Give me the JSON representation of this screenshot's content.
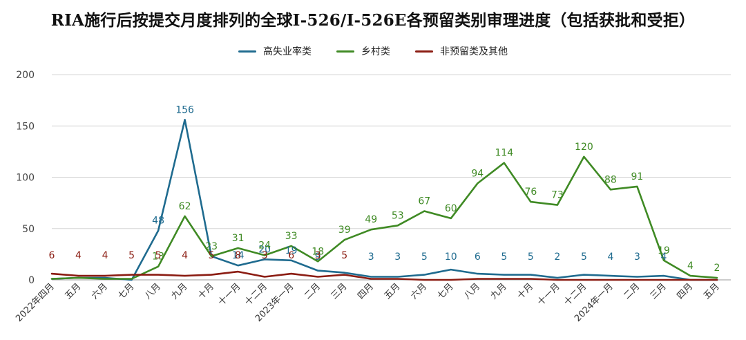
{
  "chart_data": {
    "type": "line",
    "title": "RIA施行后按提交月度排列的全球I-526/I-526E各预留类别审理进度（包括获批和受拒）",
    "categories": [
      "2022年四月",
      "五月",
      "六月",
      "七月",
      "八月",
      "九月",
      "十月",
      "十一月",
      "十二月",
      "2023年一月",
      "二月",
      "三月",
      "四月",
      "五月",
      "六月",
      "七月",
      "八月",
      "九月",
      "十月",
      "十一月",
      "十二月",
      "2024年一月",
      "二月",
      "三月",
      "四月",
      "五月"
    ],
    "ylim": [
      0,
      200
    ],
    "yticks": [
      0,
      50,
      100,
      150,
      200
    ],
    "grid": true,
    "legend_position": "top-center",
    "series": [
      {
        "name": "高失业率类",
        "color": "#1f6b8f",
        "values": [
          1,
          2,
          2,
          0,
          48,
          156,
          23,
          14,
          20,
          19,
          9,
          7,
          3,
          3,
          5,
          10,
          6,
          5,
          5,
          2,
          5,
          4,
          3,
          4,
          0,
          0
        ],
        "labels": [
          "",
          "",
          "",
          "",
          "48",
          "156",
          "",
          "14",
          "20",
          "19",
          "9",
          "",
          "3",
          "3",
          "5",
          "10",
          "6",
          "5",
          "5",
          "2",
          "5",
          "4",
          "3",
          "4",
          "",
          ""
        ]
      },
      {
        "name": "乡村类",
        "color": "#3f8a24",
        "values": [
          1,
          2,
          1,
          1,
          13,
          62,
          23,
          31,
          24,
          33,
          18,
          39,
          49,
          53,
          67,
          60,
          94,
          114,
          76,
          73,
          120,
          88,
          91,
          19,
          4,
          2
        ],
        "labels": [
          "",
          "",
          "",
          "",
          "13",
          "62",
          "23",
          "31",
          "24",
          "33",
          "18",
          "39",
          "49",
          "53",
          "67",
          "60",
          "94",
          "114",
          "76",
          "73",
          "120",
          "88",
          "91",
          "19",
          "4",
          "2"
        ]
      },
      {
        "name": "非预留类及其他",
        "color": "#8b1c12",
        "values": [
          6,
          4,
          4,
          5,
          5,
          4,
          5,
          8,
          3,
          6,
          3,
          5,
          1,
          1,
          0,
          0,
          1,
          1,
          1,
          0,
          0,
          0,
          0,
          0,
          0,
          0
        ],
        "labels": [
          "6",
          "4",
          "4",
          "5",
          "5",
          "4",
          "5",
          "8",
          "3",
          "6",
          "3",
          "5",
          "",
          "",
          "",
          "",
          "",
          "",
          "",
          "",
          "",
          "",
          "",
          "",
          "",
          ""
        ]
      }
    ]
  }
}
